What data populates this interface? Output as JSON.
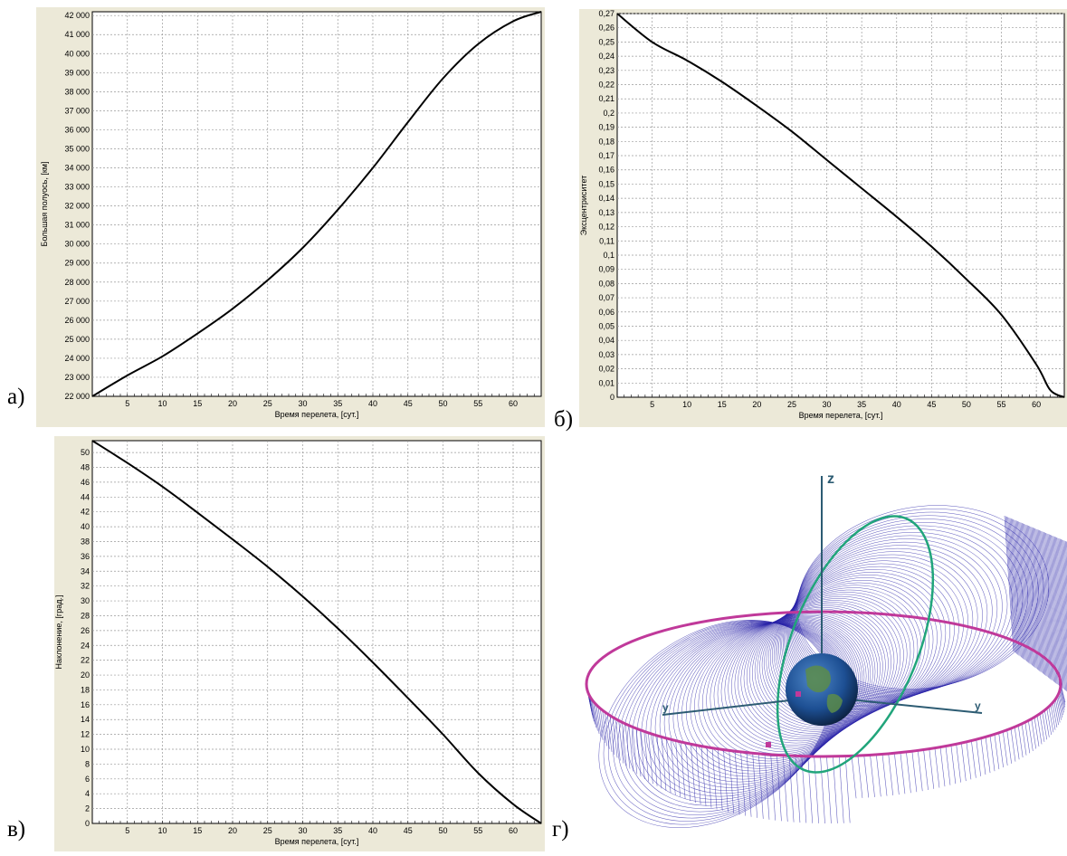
{
  "panel_labels": [
    "а)",
    "б)",
    "в)",
    "г)"
  ],
  "chart_data": [
    {
      "id": "a",
      "type": "line",
      "xlabel": "Время перелета, [сут.]",
      "ylabel": "Большая полуось, [км]",
      "xlim": [
        0,
        64
      ],
      "ylim": [
        22000,
        42200
      ],
      "x_ticks": [
        5,
        10,
        15,
        20,
        25,
        30,
        35,
        40,
        45,
        50,
        55,
        60
      ],
      "y_ticks": [
        22000,
        23000,
        24000,
        25000,
        26000,
        27000,
        28000,
        29000,
        30000,
        31000,
        32000,
        33000,
        34000,
        35000,
        36000,
        37000,
        38000,
        39000,
        40000,
        41000,
        42000
      ],
      "y_tick_labels": [
        "22 000",
        "23 000",
        "24 000",
        "25 000",
        "26 000",
        "27 000",
        "28 000",
        "29 000",
        "30 000",
        "31 000",
        "32 000",
        "33 000",
        "34 000",
        "35 000",
        "36 000",
        "37 000",
        "38 000",
        "39 000",
        "40 000",
        "41 000",
        "42 000"
      ],
      "grid": true,
      "series": [
        {
          "x": [
            0,
            5,
            10,
            15,
            20,
            25,
            30,
            35,
            40,
            45,
            50,
            55,
            60,
            64
          ],
          "y": [
            22000,
            23100,
            24100,
            25300,
            26600,
            28100,
            29800,
            31800,
            34000,
            36400,
            38700,
            40500,
            41700,
            42200
          ]
        }
      ]
    },
    {
      "id": "b",
      "type": "line",
      "xlabel": "Время перелета, [сут.]",
      "ylabel": "Эксцентриситет",
      "xlim": [
        0,
        64
      ],
      "ylim": [
        0,
        0.27
      ],
      "x_ticks": [
        5,
        10,
        15,
        20,
        25,
        30,
        35,
        40,
        45,
        50,
        55,
        60
      ],
      "y_ticks": [
        0,
        0.01,
        0.02,
        0.03,
        0.04,
        0.05,
        0.06,
        0.07,
        0.08,
        0.09,
        0.1,
        0.11,
        0.12,
        0.13,
        0.14,
        0.15,
        0.16,
        0.17,
        0.18,
        0.19,
        0.2,
        0.21,
        0.22,
        0.23,
        0.24,
        0.25,
        0.26,
        0.27
      ],
      "y_tick_labels": [
        "0",
        "0,01",
        "0,02",
        "0,03",
        "0,04",
        "0,05",
        "0,06",
        "0,07",
        "0,08",
        "0,09",
        "0,1",
        "0,11",
        "0,12",
        "0,13",
        "0,14",
        "0,15",
        "0,16",
        "0,17",
        "0,18",
        "0,19",
        "0,2",
        "0,21",
        "0,22",
        "0,23",
        "0,24",
        "0,25",
        "0,26",
        "0,27"
      ],
      "grid": true,
      "series": [
        {
          "x": [
            0,
            5,
            10,
            15,
            20,
            25,
            30,
            35,
            40,
            45,
            50,
            55,
            60,
            62,
            64
          ],
          "y": [
            0.27,
            0.25,
            0.237,
            0.222,
            0.205,
            0.187,
            0.167,
            0.147,
            0.127,
            0.106,
            0.083,
            0.058,
            0.023,
            0.005,
            0
          ]
        }
      ]
    },
    {
      "id": "v",
      "type": "line",
      "xlabel": "Время перелета, [сут.]",
      "ylabel": "Наклонение, [град.]",
      "xlim": [
        0,
        64
      ],
      "ylim": [
        0,
        51.6
      ],
      "x_ticks": [
        5,
        10,
        15,
        20,
        25,
        30,
        35,
        40,
        45,
        50,
        55,
        60
      ],
      "y_ticks": [
        0,
        2,
        4,
        6,
        8,
        10,
        12,
        14,
        16,
        18,
        20,
        22,
        24,
        26,
        28,
        30,
        32,
        34,
        36,
        38,
        40,
        42,
        44,
        46,
        48,
        50
      ],
      "y_tick_labels": [
        "0",
        "2",
        "4",
        "6",
        "8",
        "10",
        "12",
        "14",
        "16",
        "18",
        "20",
        "22",
        "24",
        "26",
        "28",
        "30",
        "32",
        "34",
        "36",
        "38",
        "40",
        "42",
        "44",
        "46",
        "48",
        "50"
      ],
      "grid": true,
      "series": [
        {
          "x": [
            0,
            5,
            10,
            15,
            20,
            25,
            30,
            35,
            40,
            45,
            50,
            55,
            60,
            64
          ],
          "y": [
            51.6,
            48.6,
            45.4,
            41.9,
            38.3,
            34.6,
            30.6,
            26.3,
            21.7,
            16.9,
            12.0,
            6.8,
            2.6,
            0
          ]
        }
      ]
    }
  ],
  "orbit_diagram": {
    "axis_labels": [
      "z",
      "y",
      "y"
    ],
    "colors": {
      "mesh": "#2a23a8",
      "outer_ring": "#c0399a",
      "inner_ring": "#21a57b",
      "axes": "#2d5c73",
      "earth_ocean": "#1d4f93",
      "earth_land": "#5c8c4a"
    }
  }
}
